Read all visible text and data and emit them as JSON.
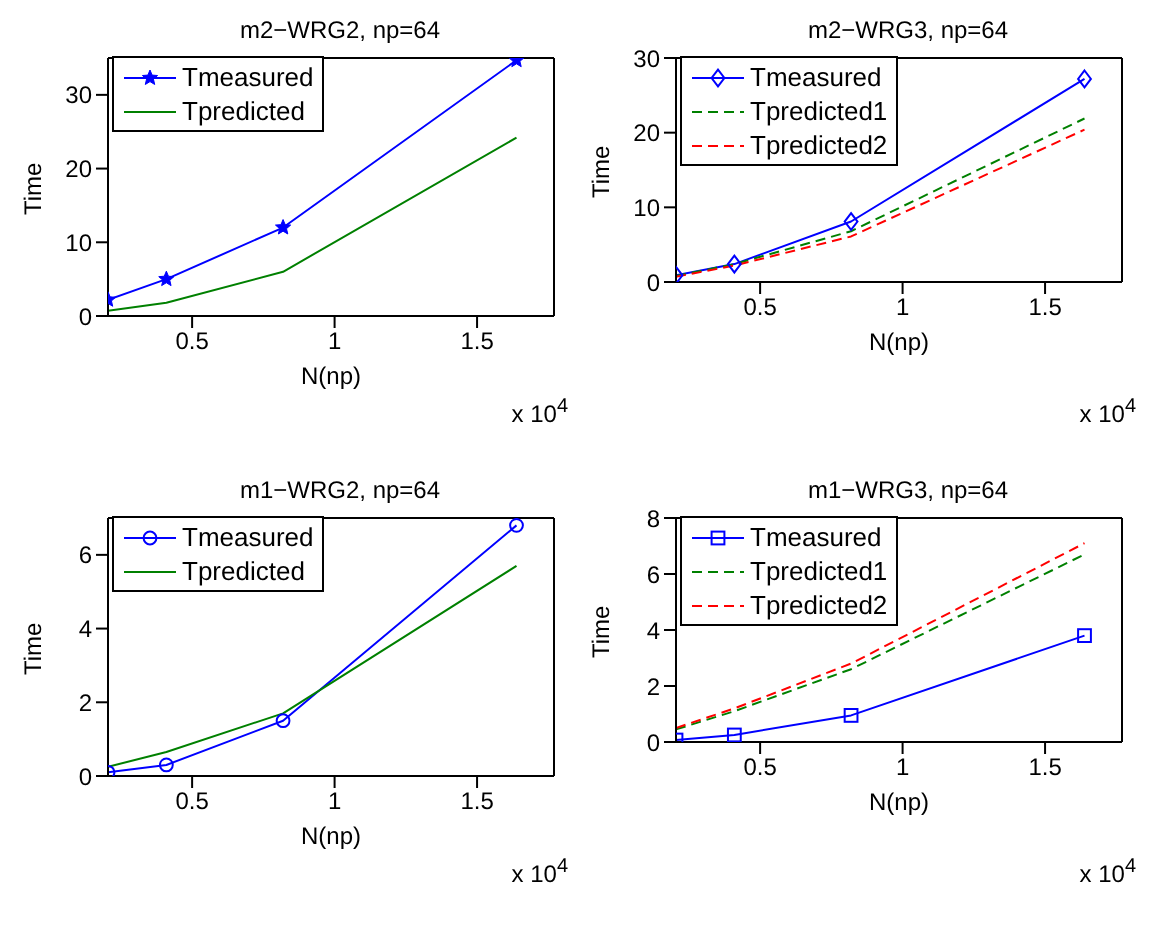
{
  "chart_data": [
    {
      "type": "line",
      "title": "m2−WRG2, np=64",
      "xlabel": "N(np)",
      "ylabel": "Time",
      "annotations": [
        "x 10$^{4}$"
      ],
      "x": [
        0.2048,
        0.4096,
        0.8192,
        1.6384
      ],
      "xlim": [
        0.2048,
        1.77
      ],
      "xticks": [
        0.5,
        1,
        1.5
      ],
      "ylim": [
        0,
        35
      ],
      "yticks": [
        0,
        10,
        20,
        30
      ],
      "legend": "top left",
      "grid": false,
      "series": [
        {
          "name": "Tmeasured",
          "color": "#0000ff",
          "marker": "star",
          "line_style": "solid",
          "values": [
            2.2,
            5,
            12,
            34.7
          ]
        },
        {
          "name": "Tpredicted",
          "color": "#008000",
          "marker": "none",
          "line_style": "solid",
          "values": [
            0.7,
            1.8,
            6,
            24.2
          ]
        }
      ]
    },
    {
      "type": "line",
      "title": "m2−WRG3, np=64",
      "xlabel": "N(np)",
      "ylabel": "Time",
      "annotations": [
        "x 10$^{4}$"
      ],
      "x": [
        0.2048,
        0.4096,
        0.8192,
        1.6384
      ],
      "xlim": [
        0.2048,
        1.77
      ],
      "xticks": [
        0.5,
        1,
        1.5
      ],
      "ylim": [
        0,
        30
      ],
      "yticks": [
        0,
        10,
        20,
        30
      ],
      "legend": "top left",
      "grid": false,
      "series": [
        {
          "name": "Tmeasured",
          "color": "#0000ff",
          "marker": "diamond",
          "line_style": "solid",
          "values": [
            0.9,
            2.4,
            8.1,
            27.2
          ]
        },
        {
          "name": "Tpredicted1",
          "color": "#008000",
          "marker": "none",
          "line_style": "dashed",
          "values": [
            0.8,
            2.4,
            6.8,
            21.9
          ]
        },
        {
          "name": "Tpredicted2",
          "color": "#ff0000",
          "marker": "none",
          "line_style": "dashed",
          "values": [
            0.7,
            2.2,
            6.1,
            20.4
          ]
        }
      ]
    },
    {
      "type": "line",
      "title": "m1−WRG2, np=64",
      "xlabel": "N(np)",
      "ylabel": "Time",
      "annotations": [
        "x 10$^{4}$"
      ],
      "x": [
        0.2048,
        0.4096,
        0.8192,
        1.6384
      ],
      "xlim": [
        0.2048,
        1.77
      ],
      "xticks": [
        0.5,
        1,
        1.5
      ],
      "ylim": [
        0,
        7
      ],
      "yticks": [
        0,
        2,
        4,
        6
      ],
      "legend": "top left",
      "grid": false,
      "series": [
        {
          "name": "Tmeasured",
          "color": "#0000ff",
          "marker": "circle",
          "line_style": "solid",
          "values": [
            0.1,
            0.3,
            1.5,
            6.8
          ]
        },
        {
          "name": "Tpredicted",
          "color": "#008000",
          "marker": "none",
          "line_style": "solid",
          "values": [
            0.25,
            0.65,
            1.7,
            5.7
          ]
        }
      ]
    },
    {
      "type": "line",
      "title": "m1−WRG3, np=64",
      "xlabel": "N(np)",
      "ylabel": "Time",
      "annotations": [
        "x 10$^{4}$"
      ],
      "x": [
        0.2048,
        0.4096,
        0.8192,
        1.6384
      ],
      "xlim": [
        0.2048,
        1.77
      ],
      "xticks": [
        0.5,
        1,
        1.5
      ],
      "ylim": [
        0,
        8
      ],
      "yticks": [
        0,
        2,
        4,
        6,
        8
      ],
      "legend": "top left",
      "grid": false,
      "series": [
        {
          "name": "Tmeasured",
          "color": "#0000ff",
          "marker": "square",
          "line_style": "solid",
          "values": [
            0.07,
            0.25,
            0.95,
            3.8
          ]
        },
        {
          "name": "Tpredicted1",
          "color": "#008000",
          "marker": "none",
          "line_style": "dashed",
          "values": [
            0.45,
            1.1,
            2.6,
            6.7
          ]
        },
        {
          "name": "Tpredicted2",
          "color": "#ff0000",
          "marker": "none",
          "line_style": "dashed",
          "values": [
            0.5,
            1.2,
            2.8,
            7.1
          ]
        }
      ]
    }
  ]
}
